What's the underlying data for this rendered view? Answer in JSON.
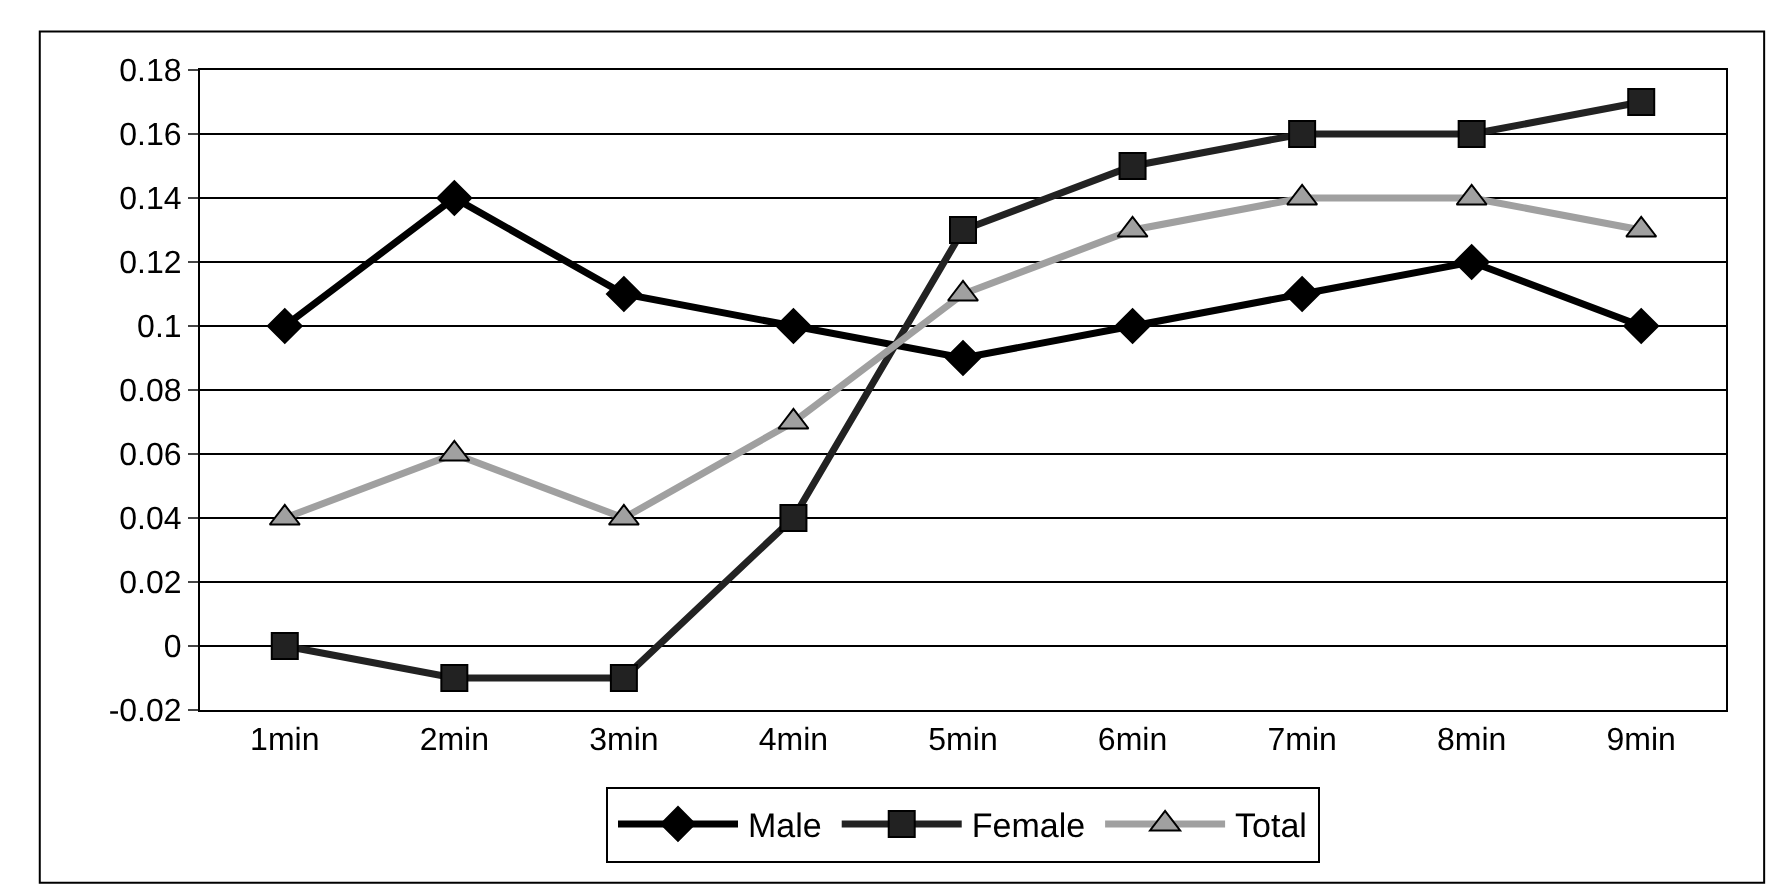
{
  "chart_data": {
    "type": "line",
    "categories": [
      "1min",
      "2min",
      "3min",
      "4min",
      "5min",
      "6min",
      "7min",
      "8min",
      "9min"
    ],
    "series": [
      {
        "name": "Male",
        "color": "#000000",
        "marker": "diamond",
        "values": [
          0.1,
          0.14,
          0.11,
          0.1,
          0.09,
          0.1,
          0.11,
          0.12,
          0.1
        ]
      },
      {
        "name": "Female",
        "color": "#222222",
        "marker": "square",
        "values": [
          0.0,
          -0.01,
          -0.01,
          0.04,
          0.13,
          0.15,
          0.16,
          0.16,
          0.17
        ]
      },
      {
        "name": "Total",
        "color": "#a0a0a0",
        "marker": "triangle",
        "values": [
          0.04,
          0.06,
          0.04,
          0.07,
          0.11,
          0.13,
          0.14,
          0.14,
          0.13
        ]
      }
    ],
    "ylim": [
      -0.02,
      0.18
    ],
    "yticks": [
      -0.02,
      0,
      0.02,
      0.04,
      0.06,
      0.08,
      0.1,
      0.12,
      0.14,
      0.16,
      0.18
    ],
    "grid": "y",
    "legend": "bottom",
    "line_style": "solid"
  }
}
